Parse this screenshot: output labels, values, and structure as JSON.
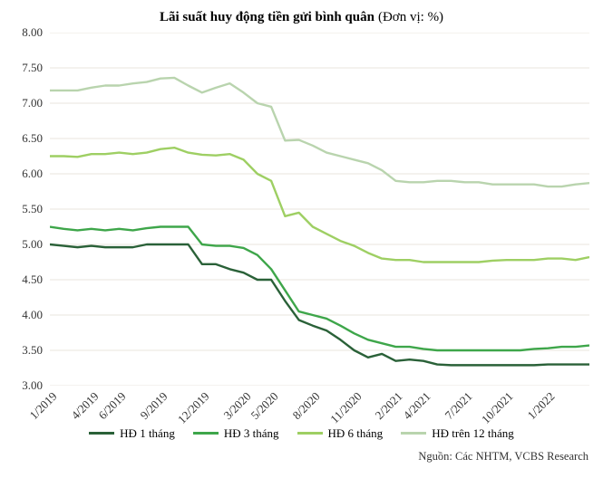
{
  "chart": {
    "type": "line",
    "title_bold": "Lãi suất huy động tiền gửi bình quân",
    "title_unit": "(Đơn vị: %)",
    "title_fontsize": 15,
    "background_color": "#ffffff",
    "grid_color": "#e8e4dc",
    "grid_width": 1,
    "line_width": 2.4,
    "ylim": [
      3.0,
      8.0
    ],
    "ytick_step": 0.5,
    "yticks": [
      "3.00",
      "3.50",
      "4.00",
      "4.50",
      "5.00",
      "5.50",
      "6.00",
      "6.50",
      "7.00",
      "7.50",
      "8.00"
    ],
    "xticks": [
      "1/2019",
      "4/2019",
      "6/2019",
      "9/2019",
      "12/2019",
      "3/2020",
      "5/2020",
      "8/2020",
      "11/2020",
      "2/2021",
      "4/2021",
      "7/2021",
      "10/2021",
      "1/2022"
    ],
    "x_count": 40,
    "xtick_indices": [
      0,
      3,
      5,
      8,
      11,
      14,
      16,
      19,
      22,
      25,
      27,
      30,
      33,
      36
    ],
    "series": [
      {
        "name": "HĐ 1 tháng",
        "color": "#2a6138",
        "values": [
          5.0,
          4.98,
          4.96,
          4.98,
          4.96,
          4.96,
          4.96,
          5.0,
          5.0,
          5.0,
          5.0,
          4.72,
          4.72,
          4.65,
          4.6,
          4.5,
          4.5,
          4.2,
          3.93,
          3.85,
          3.78,
          3.65,
          3.5,
          3.4,
          3.45,
          3.35,
          3.37,
          3.35,
          3.3,
          3.29,
          3.29,
          3.29,
          3.29,
          3.29,
          3.29,
          3.29,
          3.3,
          3.3,
          3.3,
          3.3
        ]
      },
      {
        "name": "HĐ 3 tháng",
        "color": "#3ea64a",
        "values": [
          5.25,
          5.22,
          5.2,
          5.22,
          5.2,
          5.22,
          5.2,
          5.23,
          5.25,
          5.25,
          5.25,
          5.0,
          4.98,
          4.98,
          4.95,
          4.85,
          4.65,
          4.35,
          4.05,
          4.0,
          3.95,
          3.85,
          3.74,
          3.65,
          3.6,
          3.55,
          3.55,
          3.52,
          3.5,
          3.5,
          3.5,
          3.5,
          3.5,
          3.5,
          3.5,
          3.52,
          3.53,
          3.55,
          3.55,
          3.57
        ]
      },
      {
        "name": "HĐ 6 tháng",
        "color": "#9ecf63",
        "values": [
          6.25,
          6.25,
          6.24,
          6.28,
          6.28,
          6.3,
          6.28,
          6.3,
          6.35,
          6.37,
          6.3,
          6.27,
          6.26,
          6.28,
          6.2,
          6.0,
          5.9,
          5.4,
          5.45,
          5.25,
          5.15,
          5.05,
          4.98,
          4.88,
          4.8,
          4.78,
          4.78,
          4.75,
          4.75,
          4.75,
          4.75,
          4.75,
          4.77,
          4.78,
          4.78,
          4.78,
          4.8,
          4.8,
          4.78,
          4.82
        ]
      },
      {
        "name": "HĐ trên 12 tháng",
        "color": "#b9d4ae",
        "values": [
          7.18,
          7.18,
          7.18,
          7.22,
          7.25,
          7.25,
          7.28,
          7.3,
          7.35,
          7.36,
          7.25,
          7.15,
          7.22,
          7.28,
          7.15,
          7.0,
          6.95,
          6.47,
          6.48,
          6.4,
          6.3,
          6.25,
          6.2,
          6.15,
          6.05,
          5.9,
          5.88,
          5.88,
          5.9,
          5.9,
          5.88,
          5.88,
          5.85,
          5.85,
          5.85,
          5.85,
          5.82,
          5.82,
          5.85,
          5.87
        ]
      }
    ],
    "legend_swatch_width": 28,
    "legend_fontsize": 13,
    "axis_fontsize": 13,
    "source_label": "Nguồn: Các NHTM, VCBS Research",
    "source_fontsize": 12.5
  }
}
